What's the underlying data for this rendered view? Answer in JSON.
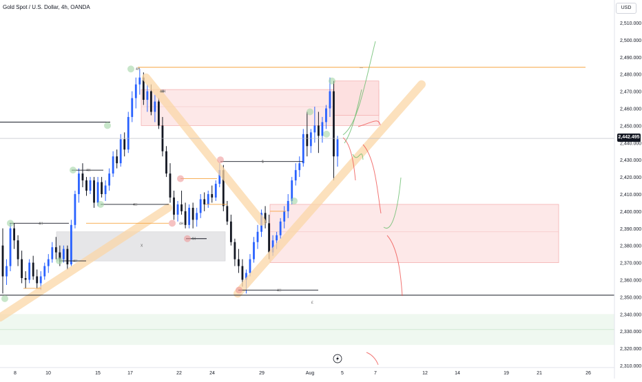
{
  "header": {
    "title": "Gold Spot / U.S. Dollar, 4h, OANDA",
    "currency": "USD",
    "last_price": "2,442.495"
  },
  "chart_data": {
    "type": "candlestick",
    "y_ticks": [
      "2,510.000",
      "2,500.000",
      "2,490.000",
      "2,480.000",
      "2,470.000",
      "2,460.000",
      "2,450.000",
      "2,440.000",
      "2,430.000",
      "2,420.000",
      "2,410.000",
      "2,400.000",
      "2,390.000",
      "2,380.000",
      "2,370.000",
      "2,360.000",
      "2,350.000",
      "2,340.000",
      "2,330.000",
      "2,320.000",
      "2,310.000"
    ],
    "x_ticks": [
      "8",
      "10",
      "15",
      "17",
      "22",
      "24",
      "29",
      "Aug",
      "5",
      "7",
      "12",
      "14",
      "19",
      "21",
      "26"
    ],
    "ylim": [
      2310,
      2510
    ],
    "candles": [
      {
        "o": 2380,
        "h": 2390,
        "l": 2352,
        "c": 2362
      },
      {
        "o": 2362,
        "h": 2372,
        "l": 2357,
        "c": 2368
      },
      {
        "o": 2368,
        "h": 2393,
        "l": 2365,
        "c": 2390
      },
      {
        "o": 2390,
        "h": 2393,
        "l": 2378,
        "c": 2383
      },
      {
        "o": 2383,
        "h": 2386,
        "l": 2368,
        "c": 2372
      },
      {
        "o": 2372,
        "h": 2377,
        "l": 2358,
        "c": 2361
      },
      {
        "o": 2361,
        "h": 2365,
        "l": 2355,
        "c": 2360
      },
      {
        "o": 2360,
        "h": 2372,
        "l": 2358,
        "c": 2370
      },
      {
        "o": 2370,
        "h": 2374,
        "l": 2360,
        "c": 2362
      },
      {
        "o": 2362,
        "h": 2366,
        "l": 2355,
        "c": 2358
      },
      {
        "o": 2358,
        "h": 2365,
        "l": 2354,
        "c": 2362
      },
      {
        "o": 2362,
        "h": 2370,
        "l": 2360,
        "c": 2368
      },
      {
        "o": 2368,
        "h": 2375,
        "l": 2364,
        "c": 2372
      },
      {
        "o": 2372,
        "h": 2382,
        "l": 2370,
        "c": 2379
      },
      {
        "o": 2379,
        "h": 2385,
        "l": 2372,
        "c": 2376
      },
      {
        "o": 2376,
        "h": 2380,
        "l": 2368,
        "c": 2372
      },
      {
        "o": 2372,
        "h": 2380,
        "l": 2370,
        "c": 2378
      },
      {
        "o": 2378,
        "h": 2380,
        "l": 2366,
        "c": 2369
      },
      {
        "o": 2369,
        "h": 2395,
        "l": 2368,
        "c": 2392
      },
      {
        "o": 2392,
        "h": 2412,
        "l": 2390,
        "c": 2410
      },
      {
        "o": 2410,
        "h": 2425,
        "l": 2405,
        "c": 2422
      },
      {
        "o": 2422,
        "h": 2428,
        "l": 2414,
        "c": 2418
      },
      {
        "o": 2418,
        "h": 2420,
        "l": 2409,
        "c": 2412
      },
      {
        "o": 2412,
        "h": 2420,
        "l": 2410,
        "c": 2418
      },
      {
        "o": 2418,
        "h": 2420,
        "l": 2402,
        "c": 2405
      },
      {
        "o": 2405,
        "h": 2420,
        "l": 2403,
        "c": 2417
      },
      {
        "o": 2417,
        "h": 2420,
        "l": 2408,
        "c": 2410
      },
      {
        "o": 2410,
        "h": 2418,
        "l": 2406,
        "c": 2415
      },
      {
        "o": 2415,
        "h": 2425,
        "l": 2412,
        "c": 2422
      },
      {
        "o": 2422,
        "h": 2435,
        "l": 2420,
        "c": 2432
      },
      {
        "o": 2432,
        "h": 2436,
        "l": 2425,
        "c": 2428
      },
      {
        "o": 2428,
        "h": 2445,
        "l": 2426,
        "c": 2442
      },
      {
        "o": 2442,
        "h": 2446,
        "l": 2432,
        "c": 2436
      },
      {
        "o": 2436,
        "h": 2458,
        "l": 2434,
        "c": 2455
      },
      {
        "o": 2455,
        "h": 2470,
        "l": 2452,
        "c": 2466
      },
      {
        "o": 2466,
        "h": 2478,
        "l": 2460,
        "c": 2474
      },
      {
        "o": 2474,
        "h": 2483,
        "l": 2468,
        "c": 2478
      },
      {
        "o": 2478,
        "h": 2481,
        "l": 2462,
        "c": 2465
      },
      {
        "o": 2465,
        "h": 2474,
        "l": 2458,
        "c": 2470
      },
      {
        "o": 2470,
        "h": 2474,
        "l": 2456,
        "c": 2458
      },
      {
        "o": 2458,
        "h": 2468,
        "l": 2452,
        "c": 2464
      },
      {
        "o": 2464,
        "h": 2466,
        "l": 2448,
        "c": 2450
      },
      {
        "o": 2450,
        "h": 2455,
        "l": 2432,
        "c": 2435
      },
      {
        "o": 2435,
        "h": 2438,
        "l": 2420,
        "c": 2422
      },
      {
        "o": 2422,
        "h": 2428,
        "l": 2405,
        "c": 2408
      },
      {
        "o": 2408,
        "h": 2412,
        "l": 2395,
        "c": 2398
      },
      {
        "o": 2398,
        "h": 2406,
        "l": 2394,
        "c": 2404
      },
      {
        "o": 2404,
        "h": 2412,
        "l": 2398,
        "c": 2400
      },
      {
        "o": 2400,
        "h": 2405,
        "l": 2390,
        "c": 2392
      },
      {
        "o": 2392,
        "h": 2404,
        "l": 2390,
        "c": 2402
      },
      {
        "o": 2402,
        "h": 2405,
        "l": 2390,
        "c": 2395
      },
      {
        "o": 2395,
        "h": 2402,
        "l": 2391,
        "c": 2399
      },
      {
        "o": 2399,
        "h": 2410,
        "l": 2396,
        "c": 2407
      },
      {
        "o": 2407,
        "h": 2411,
        "l": 2400,
        "c": 2404
      },
      {
        "o": 2404,
        "h": 2412,
        "l": 2402,
        "c": 2410
      },
      {
        "o": 2410,
        "h": 2415,
        "l": 2405,
        "c": 2408
      },
      {
        "o": 2408,
        "h": 2418,
        "l": 2406,
        "c": 2416
      },
      {
        "o": 2416,
        "h": 2428,
        "l": 2414,
        "c": 2424
      },
      {
        "o": 2424,
        "h": 2427,
        "l": 2400,
        "c": 2403
      },
      {
        "o": 2403,
        "h": 2406,
        "l": 2392,
        "c": 2394
      },
      {
        "o": 2394,
        "h": 2398,
        "l": 2380,
        "c": 2382
      },
      {
        "o": 2382,
        "h": 2384,
        "l": 2368,
        "c": 2372
      },
      {
        "o": 2372,
        "h": 2378,
        "l": 2364,
        "c": 2368
      },
      {
        "o": 2368,
        "h": 2372,
        "l": 2356,
        "c": 2360
      },
      {
        "o": 2360,
        "h": 2366,
        "l": 2352,
        "c": 2364
      },
      {
        "o": 2364,
        "h": 2375,
        "l": 2362,
        "c": 2372
      },
      {
        "o": 2372,
        "h": 2385,
        "l": 2370,
        "c": 2382
      },
      {
        "o": 2382,
        "h": 2392,
        "l": 2378,
        "c": 2388
      },
      {
        "o": 2388,
        "h": 2401,
        "l": 2385,
        "c": 2399
      },
      {
        "o": 2399,
        "h": 2403,
        "l": 2390,
        "c": 2393
      },
      {
        "o": 2393,
        "h": 2398,
        "l": 2372,
        "c": 2376
      },
      {
        "o": 2376,
        "h": 2386,
        "l": 2374,
        "c": 2383
      },
      {
        "o": 2383,
        "h": 2388,
        "l": 2378,
        "c": 2386
      },
      {
        "o": 2386,
        "h": 2396,
        "l": 2384,
        "c": 2394
      },
      {
        "o": 2394,
        "h": 2403,
        "l": 2390,
        "c": 2400
      },
      {
        "o": 2400,
        "h": 2410,
        "l": 2396,
        "c": 2406
      },
      {
        "o": 2406,
        "h": 2420,
        "l": 2404,
        "c": 2418
      },
      {
        "o": 2418,
        "h": 2428,
        "l": 2415,
        "c": 2424
      },
      {
        "o": 2424,
        "h": 2432,
        "l": 2420,
        "c": 2428
      },
      {
        "o": 2428,
        "h": 2448,
        "l": 2426,
        "c": 2445
      },
      {
        "o": 2445,
        "h": 2458,
        "l": 2432,
        "c": 2438
      },
      {
        "o": 2438,
        "h": 2448,
        "l": 2434,
        "c": 2446
      },
      {
        "o": 2446,
        "h": 2461,
        "l": 2440,
        "c": 2450
      },
      {
        "o": 2450,
        "h": 2458,
        "l": 2434,
        "c": 2444
      },
      {
        "o": 2444,
        "h": 2455,
        "l": 2440,
        "c": 2452
      },
      {
        "o": 2452,
        "h": 2462,
        "l": 2448,
        "c": 2460
      },
      {
        "o": 2460,
        "h": 2478,
        "l": 2455,
        "c": 2470
      },
      {
        "o": 2470,
        "h": 2476,
        "l": 2418,
        "c": 2432
      },
      {
        "o": 2432,
        "h": 2444,
        "l": 2426,
        "c": 2442
      }
    ]
  }
}
